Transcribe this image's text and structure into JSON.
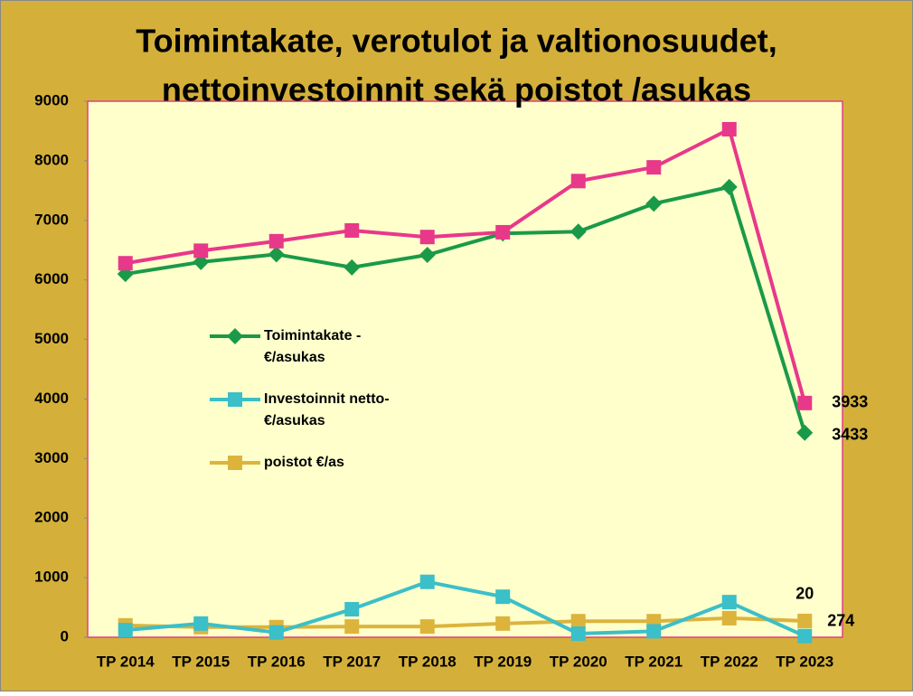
{
  "chart_data": {
    "type": "line",
    "title": [
      "Toimintakate, verotulot ja valtionosuudet,",
      "nettoinvestoinnit sekä poistot /asukas"
    ],
    "categories": [
      "TP 2014",
      "TP 2015",
      "TP 2016",
      "TP 2017",
      "TP 2018",
      "TP 2019",
      "TP 2020",
      "TP 2021",
      "TP 2022",
      "TP 2023"
    ],
    "series": [
      {
        "color": "#e8388a",
        "marker": "square",
        "values": [
          6280,
          6490,
          6650,
          6830,
          6720,
          6800,
          7660,
          7890,
          8530,
          3933
        ]
      },
      {
        "name": "Toimintakate - €/asukas",
        "color": "#1a9a48",
        "marker": "diamond",
        "values": [
          6100,
          6300,
          6430,
          6210,
          6420,
          6780,
          6810,
          7280,
          7560,
          3433
        ]
      },
      {
        "name": "Investoinnit netto-€/asukas",
        "color": "#3bbfc8",
        "marker": "square",
        "values": [
          120,
          230,
          80,
          470,
          930,
          680,
          60,
          100,
          590,
          20
        ]
      },
      {
        "name": "poistot €/as",
        "color": "#dcb43c",
        "marker": "square",
        "values": [
          200,
          170,
          170,
          180,
          180,
          230,
          270,
          270,
          320,
          274
        ]
      }
    ],
    "ylim": [
      0,
      9000
    ],
    "yticks": [
      0,
      1000,
      2000,
      3000,
      4000,
      5000,
      6000,
      7000,
      8000,
      9000
    ],
    "grid": false
  }
}
